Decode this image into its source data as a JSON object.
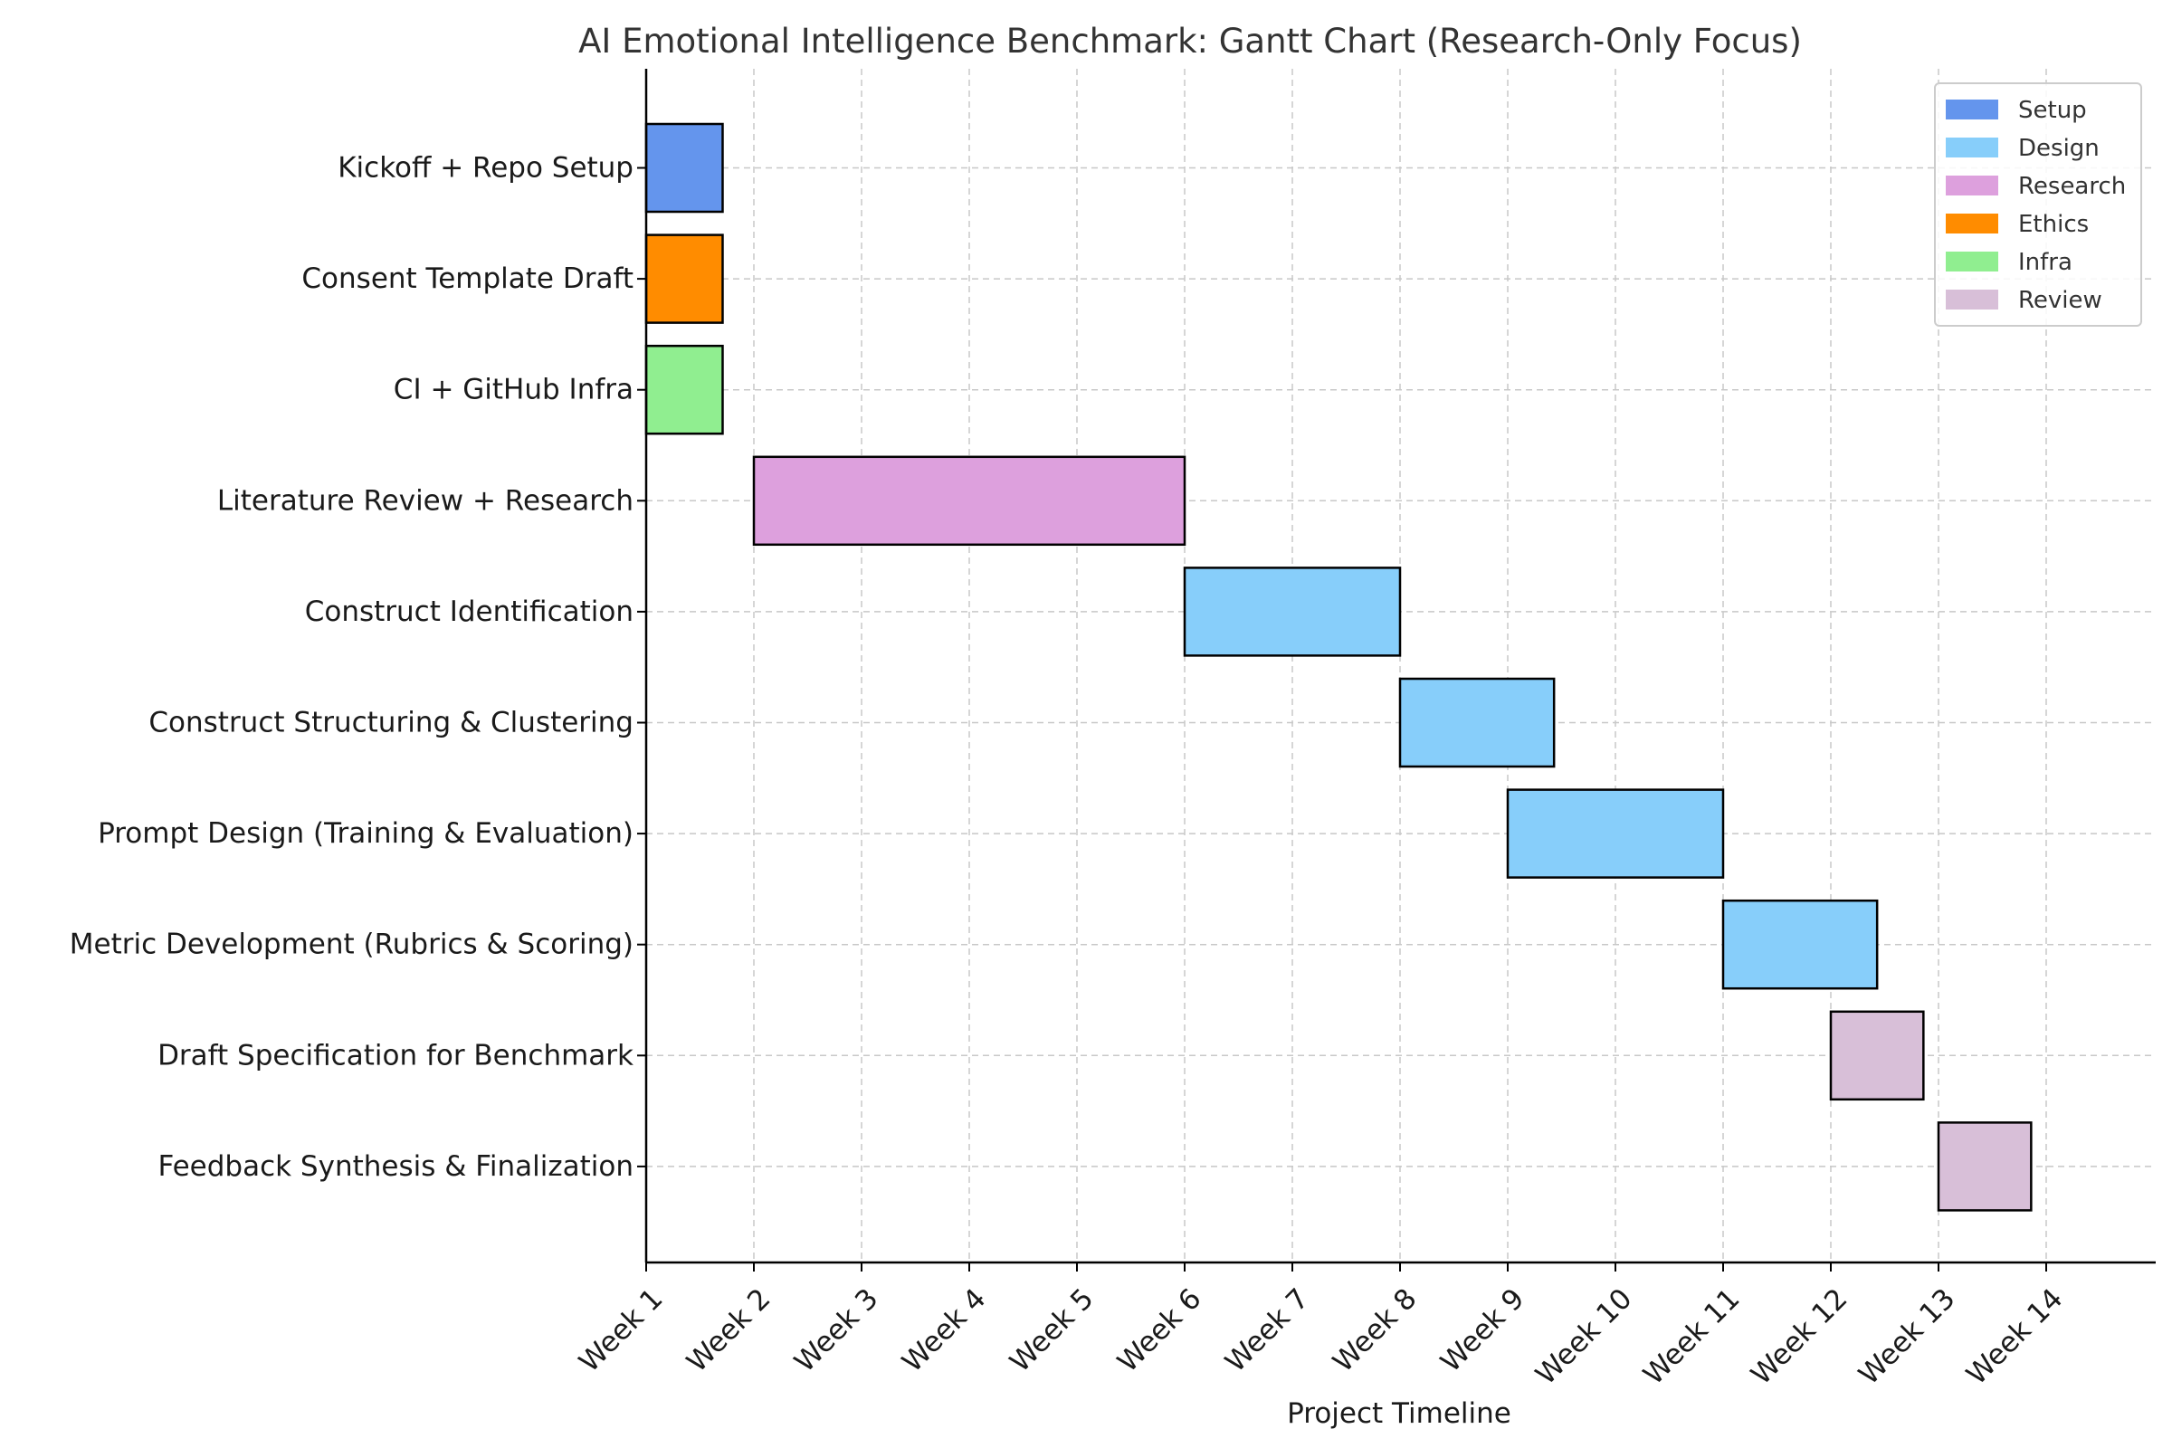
{
  "chart_data": {
    "type": "bar",
    "orientation": "horizontal-gantt",
    "title": "AI Emotional Intelligence Benchmark: Gantt Chart (Research-Only Focus)",
    "xlabel": "Project Timeline",
    "ylabel": "",
    "x_ticks": [
      "Week 1",
      "Week 2",
      "Week 3",
      "Week 4",
      "Week 5",
      "Week 6",
      "Week 7",
      "Week 8",
      "Week 9",
      "Week 10",
      "Week 11",
      "Week 12",
      "Week 13",
      "Week 14"
    ],
    "xlim": [
      1,
      15
    ],
    "grid": true,
    "legend_position": "top-right",
    "categories": [
      {
        "name": "Setup",
        "color": "#6495ED"
      },
      {
        "name": "Design",
        "color": "#87CEFA"
      },
      {
        "name": "Research",
        "color": "#DDA0DD"
      },
      {
        "name": "Ethics",
        "color": "#FF8C00"
      },
      {
        "name": "Infra",
        "color": "#90EE90"
      },
      {
        "name": "Review",
        "color": "#D8BFD8"
      }
    ],
    "tasks": [
      {
        "label": "Kickoff + Repo Setup",
        "category": "Setup",
        "start": 1.0,
        "end": 1.71
      },
      {
        "label": "Consent Template Draft",
        "category": "Ethics",
        "start": 1.0,
        "end": 1.71
      },
      {
        "label": "CI + GitHub Infra",
        "category": "Infra",
        "start": 1.0,
        "end": 1.71
      },
      {
        "label": "Literature Review + Research",
        "category": "Research",
        "start": 2.0,
        "end": 6.0
      },
      {
        "label": "Construct Identification",
        "category": "Design",
        "start": 6.0,
        "end": 8.0
      },
      {
        "label": "Construct Structuring & Clustering",
        "category": "Design",
        "start": 8.0,
        "end": 9.43
      },
      {
        "label": "Prompt Design (Training & Evaluation)",
        "category": "Design",
        "start": 9.0,
        "end": 11.0
      },
      {
        "label": "Metric Development (Rubrics & Scoring)",
        "category": "Design",
        "start": 11.0,
        "end": 12.43
      },
      {
        "label": "Draft Specification for Benchmark",
        "category": "Review",
        "start": 12.0,
        "end": 12.86
      },
      {
        "label": "Feedback Synthesis & Finalization",
        "category": "Review",
        "start": 13.0,
        "end": 13.86
      }
    ]
  }
}
